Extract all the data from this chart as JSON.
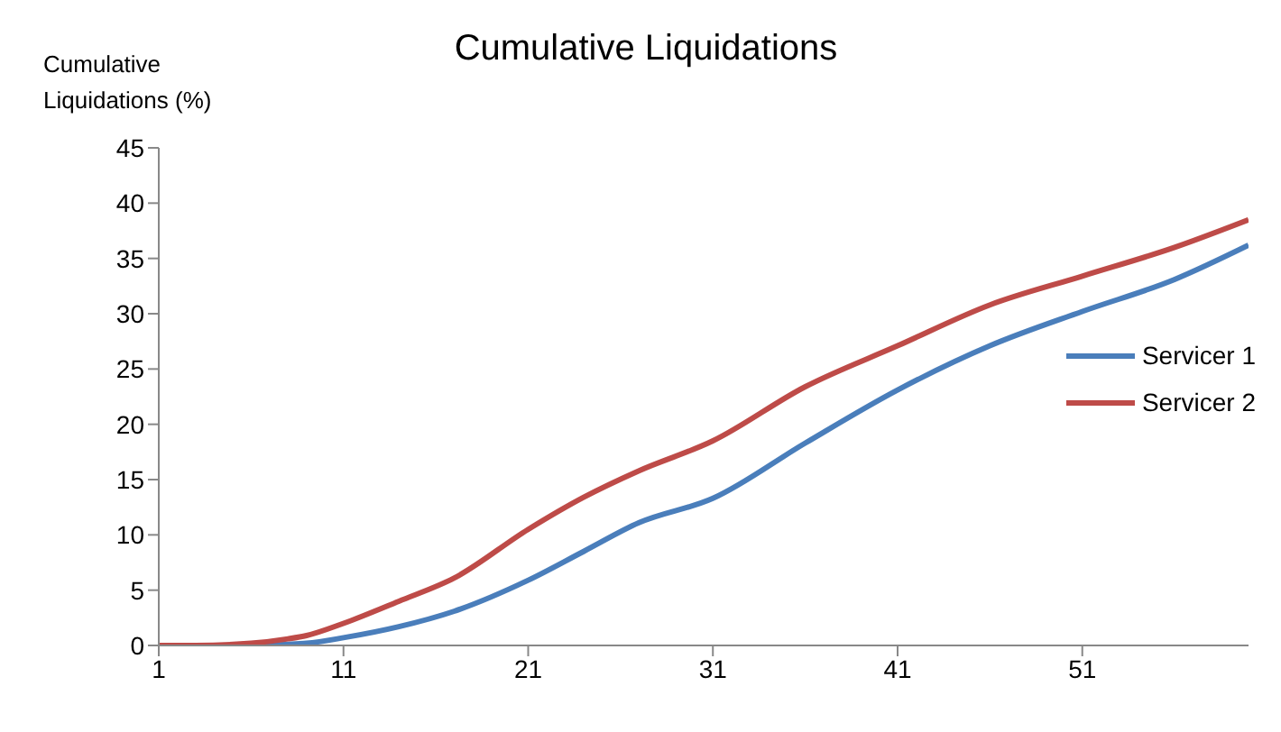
{
  "chart_data": {
    "type": "line",
    "title": "Cumulative Liquidations",
    "ylabel": "Cumulative Liquidations (%)",
    "x": [
      1,
      3,
      6,
      8,
      9,
      11,
      14,
      17,
      21,
      24,
      27,
      31,
      36,
      41,
      46,
      51,
      56,
      60
    ],
    "series": [
      {
        "name": "Servicer 1",
        "color": "#4a7ebb",
        "values": [
          0,
          0,
          0,
          0.1,
          0.2,
          0.7,
          1.7,
          3.1,
          5.9,
          8.5,
          11.1,
          13.3,
          18.3,
          23.1,
          27.1,
          30.2,
          33.1,
          36.2
        ]
      },
      {
        "name": "Servicer 2",
        "color": "#be4b48",
        "values": [
          0,
          0,
          0.2,
          0.6,
          0.9,
          2.0,
          4.0,
          6.1,
          10.5,
          13.4,
          15.8,
          18.5,
          23.4,
          27.1,
          30.8,
          33.4,
          36.0,
          38.5
        ]
      }
    ],
    "xlim": [
      1,
      60
    ],
    "xticks": [
      1,
      11,
      21,
      31,
      41,
      51
    ],
    "ylim": [
      0,
      45
    ],
    "yticks": [
      0,
      5,
      10,
      15,
      20,
      25,
      30,
      35,
      40,
      45
    ],
    "grid": false,
    "legend": "right",
    "marker": "none",
    "line_style": "solid"
  }
}
